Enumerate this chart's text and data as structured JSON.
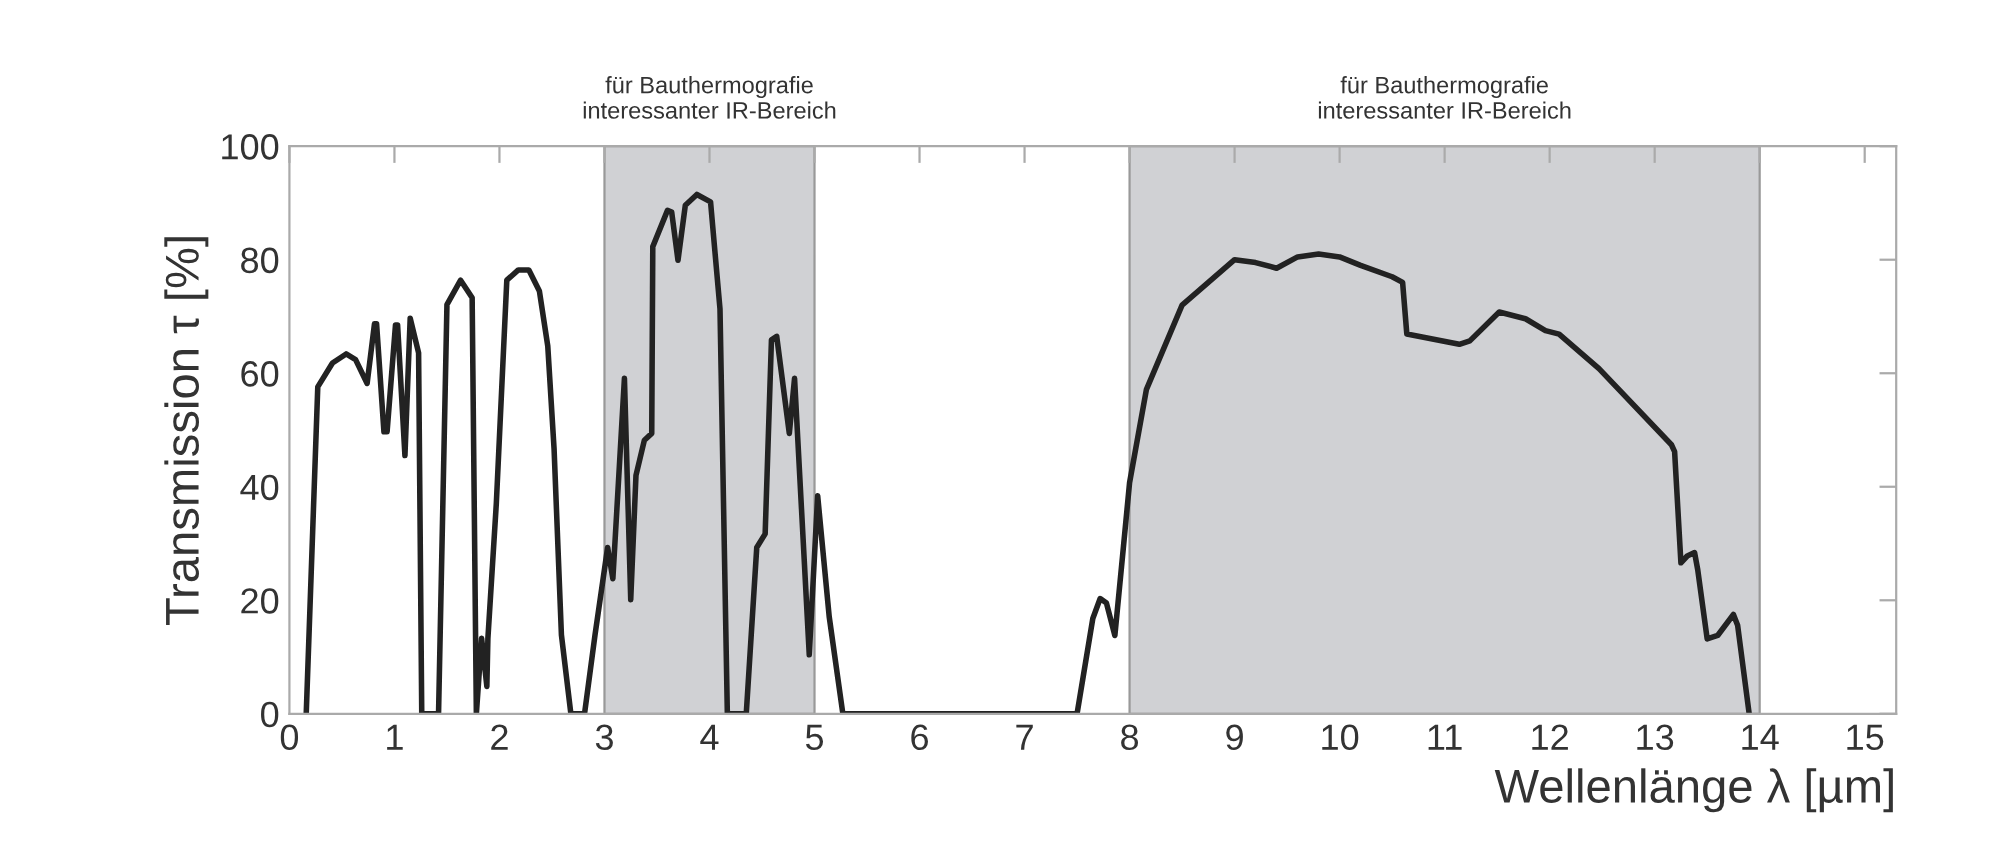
{
  "chart_data": {
    "type": "line",
    "xlabel": "Wellenlänge λ [µm]",
    "ylabel": "Transmission τ [%]",
    "xlim": [
      0,
      15.3
    ],
    "xticks": [
      0,
      1,
      2,
      3,
      4,
      5,
      6,
      7,
      8,
      9,
      10,
      11,
      12,
      13,
      14,
      15
    ],
    "ylim": [
      0,
      100
    ],
    "yticks": [
      0,
      20,
      40,
      60,
      80,
      100
    ],
    "grid": false,
    "marker": "none",
    "line_style": "solid",
    "bands": [
      {
        "axis": "x",
        "from": 3,
        "to": 5,
        "label": "für Bauthermografie\ninteressanter IR-Bereich",
        "color": "#d0d1d4"
      },
      {
        "axis": "x",
        "from": 8,
        "to": 14,
        "label": "für Bauthermografie\ninteressanter IR-Bereich",
        "color": "#d0d1d4"
      }
    ],
    "series": [
      {
        "color": "#222222",
        "x": [
          0.16,
          0.27,
          0.41,
          0.54,
          0.63,
          0.74,
          0.81,
          0.83,
          0.9,
          0.93,
          1.01,
          1.03,
          1.1,
          1.15,
          1.23,
          1.26,
          1.42,
          1.5,
          1.63,
          1.74,
          1.78,
          1.83,
          1.88,
          1.89,
          1.97,
          2.07,
          2.18,
          2.28,
          2.38,
          2.46,
          2.52,
          2.59,
          2.68,
          2.81,
          2.91,
          3.03,
          3.08,
          3.19,
          3.25,
          3.3,
          3.38,
          3.45,
          3.46,
          3.6,
          3.64,
          3.7,
          3.77,
          3.88,
          4.01,
          4.1,
          4.17,
          4.35,
          4.45,
          4.53,
          4.59,
          4.64,
          4.76,
          4.81,
          4.95,
          5.03,
          5.14,
          5.27,
          7.5,
          7.65,
          7.72,
          7.78,
          7.86,
          7.94,
          8.0,
          8.16,
          8.5,
          8.75,
          9.0,
          9.2,
          9.4,
          9.6,
          9.8,
          10.0,
          10.2,
          10.5,
          10.6,
          10.64,
          11.14,
          11.24,
          11.52,
          11.77,
          11.96,
          12.09,
          12.47,
          13.16,
          13.19,
          13.25,
          13.31,
          13.38,
          13.41,
          13.5,
          13.6,
          13.75,
          13.79,
          13.9
        ],
        "values": [
          0,
          57.6,
          61.8,
          63.4,
          62.4,
          58.2,
          68.7,
          68.7,
          49.7,
          49.7,
          68.5,
          68.5,
          45.5,
          69.7,
          63.6,
          0,
          0,
          72.1,
          76.4,
          73.3,
          0,
          13.3,
          4.8,
          13.3,
          37,
          76.4,
          78.2,
          78.2,
          74.5,
          64.8,
          46.7,
          13.9,
          0,
          0,
          13.9,
          29.3,
          23.8,
          59.1,
          20.1,
          42,
          48.2,
          49.4,
          82.3,
          88.7,
          88.4,
          79.9,
          89.6,
          91.5,
          90.2,
          71.3,
          0,
          0,
          29.3,
          31.7,
          65.9,
          66.5,
          49.4,
          59.1,
          10.4,
          38.4,
          17.1,
          0,
          0,
          16.8,
          20.3,
          19.5,
          13.8,
          29.1,
          40.7,
          57.1,
          72,
          76,
          80,
          79.5,
          78.5,
          80.5,
          81,
          80.5,
          79,
          77,
          76,
          66.9,
          65.1,
          65.7,
          70.8,
          69.6,
          67.5,
          66.9,
          60.8,
          47.4,
          46.2,
          26.6,
          27.8,
          28.4,
          25.4,
          13.2,
          13.8,
          17.5,
          15.6,
          0
        ]
      }
    ]
  }
}
